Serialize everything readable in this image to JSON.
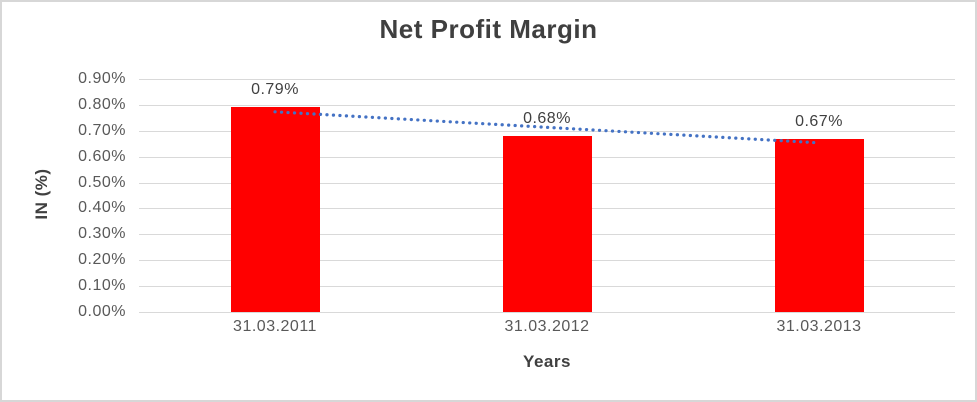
{
  "window": {
    "background": "#ffffff",
    "border_color": "#d7d7d7"
  },
  "chart_data": {
    "type": "bar",
    "title": "Net Profit Margin",
    "categories": [
      "31.03.2011",
      "31.03.2012",
      "31.03.2013"
    ],
    "values": [
      0.79,
      0.68,
      0.67
    ],
    "data_labels": [
      "0.79%",
      "0.68%",
      "0.67%"
    ],
    "xlabel": "Years",
    "ylabel": "IN (%)",
    "ylim": [
      0,
      0.9
    ],
    "ytick_values": [
      0.0,
      0.1,
      0.2,
      0.3,
      0.4,
      0.5,
      0.6,
      0.7,
      0.8,
      0.9
    ],
    "ytick_labels": [
      "0.00%",
      "0.10%",
      "0.20%",
      "0.30%",
      "0.40%",
      "0.50%",
      "0.60%",
      "0.70%",
      "0.80%",
      "0.90%"
    ],
    "grid": true,
    "legend": "none",
    "bar_color": "#ff0000",
    "gridline_color": "#d9d9d9",
    "title_color": "#3f3f3f",
    "tick_color": "#595959",
    "label_color": "#404040",
    "trendline": {
      "type": "linear",
      "style": "dotted",
      "color": "#4472c4",
      "start_value": 0.7733,
      "end_value": 0.6533
    }
  }
}
